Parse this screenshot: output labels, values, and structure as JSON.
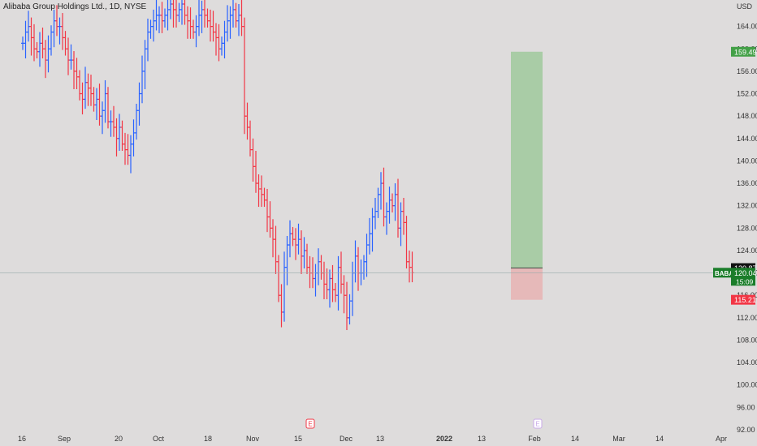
{
  "title": "Alibaba Group Holdings Ltd., 1D, NYSE",
  "currency": "USD",
  "colors": {
    "up": "#2962ff",
    "down": "#f23645",
    "profit_zone": "#a9cca6",
    "loss_zone": "#e6b9b9",
    "target_badge": "#43a047",
    "stop_badge": "#f23645",
    "symbol_badge": "#1b7d2a",
    "background": "#dedcdc"
  },
  "chart_data": {
    "type": "ohlc",
    "ylim": [
      92,
      168
    ],
    "y_ticks": [
      "164.00",
      "160.00",
      "156.00",
      "152.00",
      "148.00",
      "144.00",
      "140.00",
      "136.00",
      "132.00",
      "128.00",
      "124.00",
      "120.00",
      "116.00",
      "112.00",
      "108.00",
      "104.00",
      "100.00",
      "96.00",
      "92.00"
    ],
    "x_ticks": [
      "16",
      "Sep",
      "20",
      "Oct",
      "18",
      "Nov",
      "15",
      "Dec",
      "13",
      "2022",
      "13",
      "Feb",
      "14",
      "Mar",
      "14",
      "Apr"
    ],
    "close_series": [
      161,
      163,
      164,
      162,
      160,
      159.5,
      161,
      160,
      158,
      160,
      163,
      165,
      164,
      164,
      162,
      160,
      158,
      158,
      156,
      155,
      152,
      151,
      154,
      153,
      152,
      150,
      151,
      148,
      149,
      152,
      147,
      147,
      146,
      144,
      146,
      143,
      142,
      141,
      143,
      145,
      149,
      152,
      156,
      160,
      163,
      164,
      165,
      166,
      166,
      165,
      166,
      167,
      168,
      167,
      166,
      167,
      168,
      166,
      165,
      164,
      163,
      164,
      166,
      167,
      166,
      165,
      164,
      163,
      162,
      160,
      161,
      163,
      165,
      166,
      167,
      165,
      166,
      164,
      148,
      146,
      142,
      139,
      136,
      135,
      134,
      133,
      130,
      128,
      126,
      122,
      116,
      113,
      121,
      125,
      127,
      126,
      125,
      126,
      123,
      124,
      121,
      120,
      119,
      120,
      122,
      120,
      118,
      117,
      119,
      117,
      116,
      121,
      118,
      116,
      112,
      115,
      120,
      123,
      120,
      120,
      122,
      125,
      127,
      130,
      131,
      134,
      136,
      130,
      131,
      133,
      132,
      134,
      128,
      131,
      129,
      122,
      121,
      120.04
    ],
    "last_price": "120.04",
    "position": {
      "target": "159.49",
      "entry": "120.87",
      "stop": "115.21"
    },
    "price_label": {
      "symbol": "BABA",
      "price": "120.04",
      "countdown": "15:09"
    },
    "earnings_markers": [
      "E",
      "E"
    ]
  }
}
